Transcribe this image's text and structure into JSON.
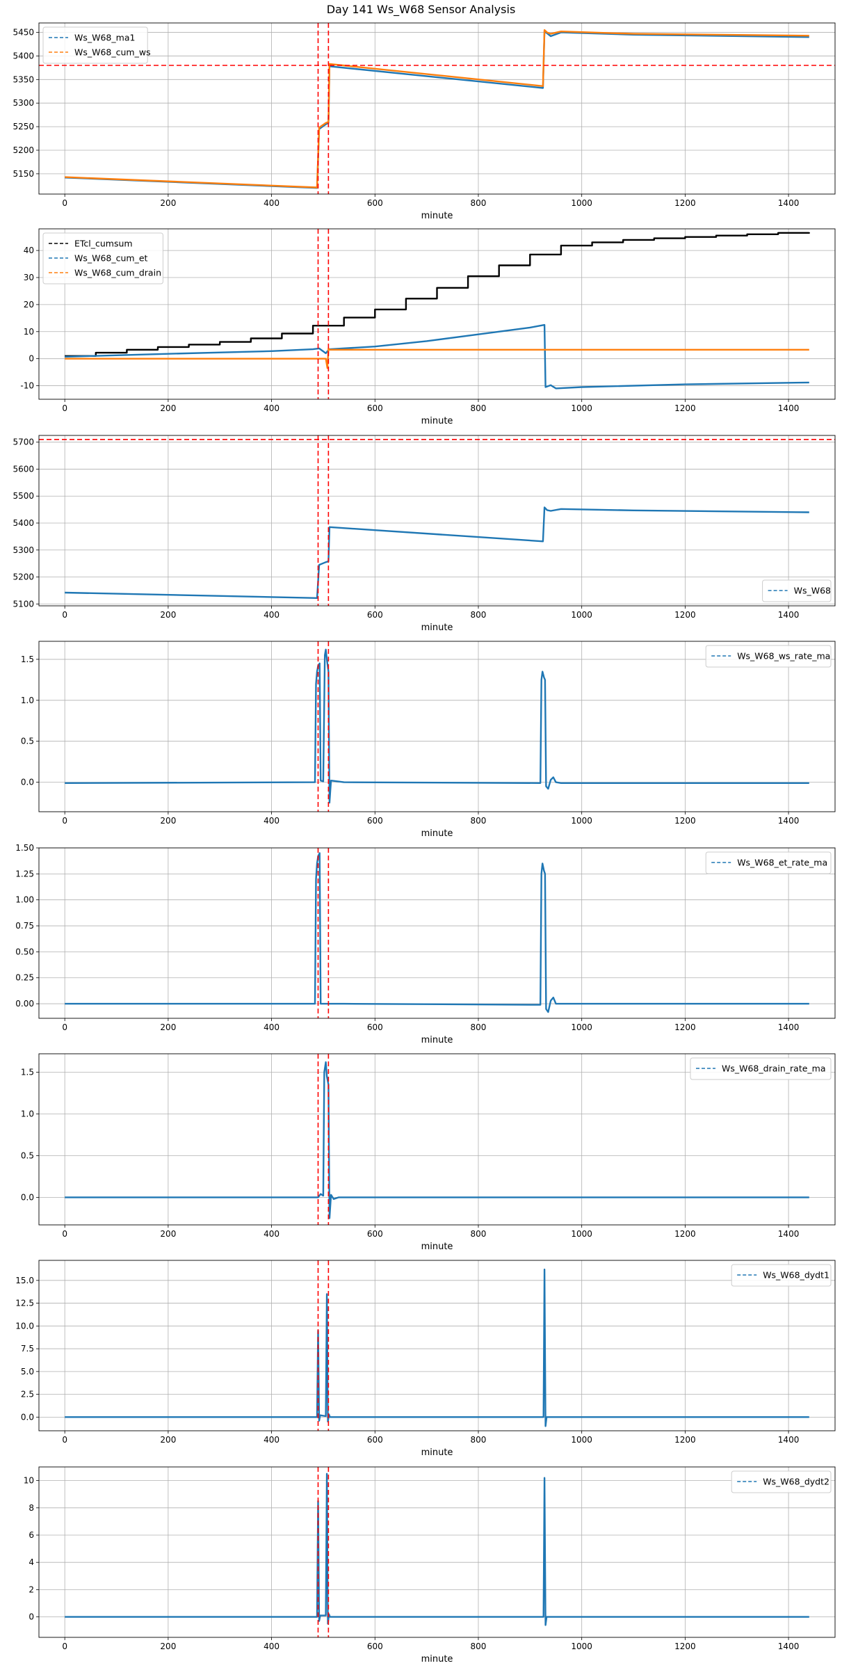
{
  "figure": {
    "title": "Day 141 Ws_W68 Sensor Analysis"
  },
  "colors": {
    "blue": "#1f77b4",
    "orange": "#ff7f0e",
    "black": "#000000",
    "red": "#ff0000",
    "grid": "#b0b0b0"
  },
  "chart_data": [
    {
      "type": "line",
      "xlabel": "minute",
      "xlim": [
        -50,
        1490
      ],
      "xticks": [
        0,
        200,
        400,
        600,
        800,
        1000,
        1200,
        1400
      ],
      "ylim": [
        5107,
        5470
      ],
      "yticks": [
        5150,
        5200,
        5250,
        5300,
        5350,
        5400,
        5450
      ],
      "legend_loc": "upper-left",
      "vlines": [
        490,
        510
      ],
      "hlines": [
        5380
      ],
      "series": [
        {
          "name": "Ws_W68_ma1",
          "color": "blue",
          "x": [
            0,
            488,
            492,
            505,
            510,
            512,
            925,
            928,
            933,
            940,
            960,
            1100,
            1440
          ],
          "y": [
            5142,
            5120,
            5245,
            5255,
            5258,
            5378,
            5332,
            5452,
            5448,
            5442,
            5450,
            5445,
            5440
          ]
        },
        {
          "name": "Ws_W68_cum_ws",
          "color": "orange",
          "x": [
            0,
            488,
            492,
            505,
            510,
            512,
            925,
            928,
            933,
            940,
            960,
            1100,
            1440
          ],
          "y": [
            5143,
            5121,
            5248,
            5258,
            5260,
            5383,
            5336,
            5455,
            5450,
            5447,
            5452,
            5447,
            5443
          ]
        }
      ]
    },
    {
      "type": "line",
      "xlabel": "minute",
      "xlim": [
        -50,
        1490
      ],
      "xticks": [
        0,
        200,
        400,
        600,
        800,
        1000,
        1200,
        1400
      ],
      "ylim": [
        -15,
        48
      ],
      "yticks": [
        -10,
        0,
        10,
        20,
        30,
        40
      ],
      "legend_loc": "upper-left",
      "vlines": [
        490,
        510
      ],
      "hlines": [],
      "series": [
        {
          "name": "ETcl_cumsum",
          "color": "black",
          "step": true,
          "x": [
            0,
            60,
            120,
            180,
            240,
            300,
            360,
            420,
            480,
            540,
            600,
            660,
            720,
            780,
            840,
            900,
            960,
            1020,
            1080,
            1140,
            1200,
            1260,
            1320,
            1380,
            1440
          ],
          "y": [
            1,
            2.2,
            3.3,
            4.3,
            5.2,
            6.2,
            7.5,
            9.3,
            12.2,
            15.2,
            18.2,
            22.2,
            26.2,
            30.5,
            34.5,
            38.5,
            41.8,
            43.0,
            43.9,
            44.5,
            45.0,
            45.5,
            46.0,
            46.5,
            46.7
          ]
        },
        {
          "name": "Ws_W68_cum_et",
          "color": "blue",
          "x": [
            0,
            200,
            400,
            480,
            492,
            505,
            510,
            512,
            600,
            700,
            800,
            900,
            928,
            930,
            940,
            950,
            1000,
            1200,
            1440
          ],
          "y": [
            0.7,
            1.8,
            2.8,
            3.5,
            3.8,
            2.0,
            3.2,
            3.5,
            4.5,
            6.5,
            9.0,
            11.5,
            12.5,
            -10.5,
            -9.8,
            -11.0,
            -10.5,
            -9.5,
            -8.8
          ]
        },
        {
          "name": "Ws_W68_cum_drain",
          "color": "orange",
          "x": [
            0,
            490,
            505,
            508,
            510,
            512,
            1440
          ],
          "y": [
            0,
            0,
            0,
            -3.5,
            3.8,
            3.3,
            3.3
          ]
        }
      ]
    },
    {
      "type": "line",
      "xlabel": "minute",
      "xlim": [
        -50,
        1490
      ],
      "xticks": [
        0,
        200,
        400,
        600,
        800,
        1000,
        1200,
        1400
      ],
      "ylim": [
        5093,
        5725
      ],
      "yticks": [
        5100,
        5200,
        5300,
        5400,
        5500,
        5600,
        5700
      ],
      "legend_loc": "lower-right",
      "vlines": [
        490,
        510
      ],
      "hlines": [
        5710
      ],
      "series": [
        {
          "name": "Ws_W68",
          "color": "blue",
          "x": [
            0,
            488,
            492,
            505,
            510,
            512,
            925,
            928,
            933,
            940,
            960,
            1100,
            1440
          ],
          "y": [
            5142,
            5122,
            5245,
            5255,
            5258,
            5385,
            5332,
            5458,
            5448,
            5445,
            5452,
            5447,
            5440
          ]
        }
      ]
    },
    {
      "type": "line",
      "xlabel": "minute",
      "xlim": [
        -50,
        1490
      ],
      "xticks": [
        0,
        200,
        400,
        600,
        800,
        1000,
        1200,
        1400
      ],
      "ylim": [
        -0.36,
        1.72
      ],
      "yticks": [
        0.0,
        0.5,
        1.0,
        1.5
      ],
      "legend_loc": "upper-right",
      "vlines": [
        490,
        510
      ],
      "hlines": [],
      "series": [
        {
          "name": "Ws_W68_ws_rate_ma",
          "color": "blue",
          "x": [
            0,
            484,
            486,
            488,
            490,
            493,
            495,
            500,
            503,
            505,
            507,
            510,
            512,
            515,
            540,
            920,
            922,
            924,
            927,
            929,
            931,
            935,
            940,
            945,
            950,
            960,
            1440
          ],
          "y": [
            -0.01,
            0.0,
            1.2,
            1.35,
            1.42,
            1.45,
            0.02,
            0.01,
            1.55,
            1.62,
            1.5,
            1.35,
            -0.25,
            0.02,
            0.0,
            -0.01,
            1.25,
            1.35,
            1.28,
            1.25,
            -0.05,
            -0.08,
            0.03,
            0.06,
            0.0,
            -0.01,
            -0.01
          ]
        }
      ]
    },
    {
      "type": "line",
      "xlabel": "minute",
      "xlim": [
        -50,
        1490
      ],
      "xticks": [
        0,
        200,
        400,
        600,
        800,
        1000,
        1200,
        1400
      ],
      "ylim": [
        -0.14,
        1.5
      ],
      "yticks": [
        0.0,
        0.25,
        0.5,
        0.75,
        1.0,
        1.25,
        1.5
      ],
      "legend_loc": "upper-right",
      "vlines": [
        490,
        510
      ],
      "hlines": [],
      "series": [
        {
          "name": "Ws_W68_et_rate_ma",
          "color": "blue",
          "x": [
            0,
            484,
            486,
            488,
            490,
            493,
            495,
            540,
            920,
            922,
            924,
            927,
            929,
            931,
            935,
            940,
            945,
            950,
            960,
            1440
          ],
          "y": [
            0.0,
            0.0,
            1.2,
            1.35,
            1.42,
            1.45,
            0.0,
            0.0,
            -0.01,
            1.25,
            1.35,
            1.28,
            1.25,
            -0.05,
            -0.08,
            0.03,
            0.06,
            0.0,
            0.0,
            0.0
          ]
        }
      ]
    },
    {
      "type": "line",
      "xlabel": "minute",
      "xlim": [
        -50,
        1490
      ],
      "xticks": [
        0,
        200,
        400,
        600,
        800,
        1000,
        1200,
        1400
      ],
      "ylim": [
        -0.33,
        1.72
      ],
      "yticks": [
        0.0,
        0.5,
        1.0,
        1.5
      ],
      "legend_loc": "upper-right",
      "vlines": [
        490,
        510
      ],
      "hlines": [],
      "series": [
        {
          "name": "Ws_W68_drain_rate_ma",
          "color": "blue",
          "x": [
            0,
            490,
            495,
            500,
            502,
            505,
            507,
            510,
            512,
            515,
            520,
            530,
            1440
          ],
          "y": [
            0.0,
            0.0,
            0.04,
            0.02,
            1.5,
            1.62,
            1.45,
            1.35,
            -0.25,
            0.03,
            -0.02,
            0.0,
            0.0
          ]
        }
      ]
    },
    {
      "type": "line",
      "xlabel": "minute",
      "xlim": [
        -50,
        1490
      ],
      "xticks": [
        0,
        200,
        400,
        600,
        800,
        1000,
        1200,
        1400
      ],
      "ylim": [
        -1.5,
        17.2
      ],
      "yticks": [
        0.0,
        2.5,
        5.0,
        7.5,
        10.0,
        12.5,
        15.0
      ],
      "legend_loc": "upper-right",
      "vlines": [
        490,
        510
      ],
      "hlines": [],
      "series": [
        {
          "name": "Ws_W68_dydt1",
          "color": "blue",
          "x": [
            0,
            488,
            490,
            492,
            494,
            505,
            507,
            509,
            511,
            513,
            926,
            928,
            930,
            932,
            1440
          ],
          "y": [
            0.0,
            0.0,
            9.5,
            -0.4,
            0.2,
            0.1,
            13.5,
            -0.5,
            0.3,
            0.0,
            0.0,
            16.2,
            -1.0,
            0.0,
            0.0
          ]
        }
      ]
    },
    {
      "type": "line",
      "xlabel": "minute",
      "xlim": [
        -50,
        1490
      ],
      "xticks": [
        0,
        200,
        400,
        600,
        800,
        1000,
        1200,
        1400
      ],
      "ylim": [
        -1.5,
        11.0
      ],
      "yticks": [
        0,
        2,
        4,
        6,
        8,
        10
      ],
      "legend_loc": "upper-right",
      "vlines": [
        490,
        510
      ],
      "hlines": [],
      "series": [
        {
          "name": "Ws_W68_dydt2",
          "color": "blue",
          "x": [
            0,
            488,
            490,
            492,
            494,
            505,
            507,
            509,
            511,
            513,
            926,
            928,
            930,
            932,
            1440
          ],
          "y": [
            0.0,
            0.0,
            8.5,
            -0.3,
            0.1,
            0.1,
            10.5,
            -0.5,
            0.2,
            0.0,
            0.0,
            10.2,
            -0.6,
            0.0,
            0.0
          ]
        }
      ]
    }
  ]
}
